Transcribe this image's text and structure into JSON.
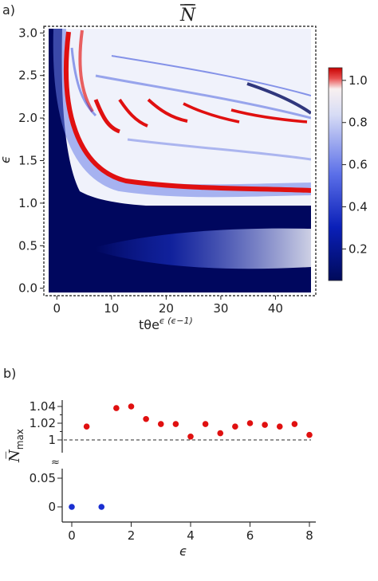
{
  "panel_a_label": "a)",
  "panel_b_label": "b)",
  "colors": {
    "dark_blue": "#00075e",
    "blue": "#1a2fd1",
    "white": "#f4f4fb",
    "red": "#e01010",
    "dash": "#555555"
  },
  "chart_data": [
    {
      "type": "heatmap",
      "title": "N̅",
      "xlabel": "tθe",
      "xlabel_sup": "ϵ (ϵ−1)",
      "ylabel": "ϵ",
      "xlim": [
        -1.5,
        46.5
      ],
      "ylim": [
        -0.05,
        3.05
      ],
      "xticks": [
        0,
        10,
        20,
        30,
        40
      ],
      "yticks": [
        0.0,
        0.5,
        1.0,
        1.5,
        2.0,
        2.5,
        3.0
      ],
      "ytick_labels": [
        "0.0",
        "0.5",
        "1.0",
        "1.5",
        "2.0",
        "2.5",
        "3.0"
      ],
      "colorbar": {
        "ticks": [
          0.2,
          0.4,
          0.6,
          0.8,
          1.0
        ],
        "tick_labels": [
          "0.2",
          "0.4",
          "0.6",
          "0.8",
          "1.0"
        ],
        "range": [
          0.05,
          1.06
        ]
      }
    },
    {
      "type": "scatter",
      "xlabel": "ϵ",
      "ylabel": "N̅",
      "ylabel_sub": "max",
      "xticks": [
        0,
        2,
        4,
        6,
        8
      ],
      "ytick_labels": [
        "0",
        "0.05",
        "1",
        "1.02",
        "1.04"
      ],
      "axis_break": "≈",
      "reference_line": 1,
      "series": [
        {
          "color": "#1a2fd1",
          "x": [
            0,
            1
          ],
          "y": [
            0,
            0
          ]
        },
        {
          "color": "#e01010",
          "x": [
            0.5,
            1.5,
            2.0,
            2.5,
            3.0,
            3.5,
            4.0,
            4.5,
            5.0,
            5.5,
            6.0,
            6.5,
            7.0,
            7.5,
            8.0
          ],
          "y": [
            1.016,
            1.038,
            1.04,
            1.025,
            1.019,
            1.019,
            1.004,
            1.019,
            1.008,
            1.016,
            1.02,
            1.018,
            1.016,
            1.019,
            1.006
          ]
        }
      ]
    }
  ]
}
